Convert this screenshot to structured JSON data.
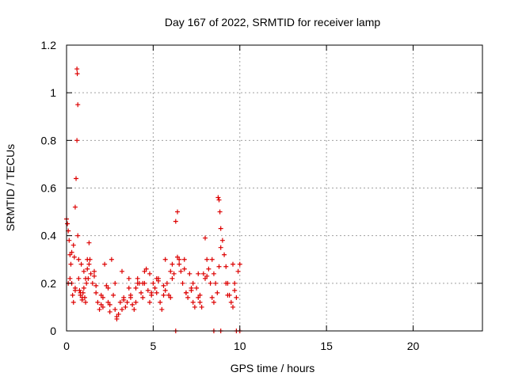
{
  "chart_data": {
    "type": "scatter",
    "title": "Day 167 of 2022, SRMTID for receiver lamp",
    "xlabel": "GPS time / hours",
    "ylabel": "SRMTID / TECUs",
    "xlim": [
      0,
      24
    ],
    "ylim": [
      0,
      1.2
    ],
    "x_ticks": [
      0,
      5,
      10,
      15,
      20
    ],
    "x_tick_labels": [
      "0",
      "5",
      "10",
      "15",
      "20"
    ],
    "y_ticks": [
      0,
      0.2,
      0.4,
      0.6,
      0.8,
      1.0,
      1.2
    ],
    "y_tick_labels": [
      "0",
      "0.2",
      "0.4",
      "0.6",
      "0.8",
      "1",
      "1.2"
    ],
    "grid": true,
    "marker": "+",
    "series": [
      {
        "name": "SRMTID",
        "color": "#dd0000",
        "x": [
          0.0,
          0.05,
          0.1,
          0.15,
          0.2,
          0.25,
          0.3,
          0.35,
          0.4,
          0.45,
          0.5,
          0.5,
          0.55,
          0.6,
          0.6,
          0.62,
          0.65,
          0.65,
          0.7,
          0.7,
          0.75,
          0.8,
          0.85,
          0.9,
          0.95,
          1.0,
          1.05,
          1.1,
          1.15,
          1.2,
          1.25,
          1.3,
          1.35,
          1.4,
          1.5,
          1.6,
          1.7,
          1.8,
          1.9,
          2.0,
          2.1,
          2.2,
          2.3,
          2.4,
          2.5,
          2.6,
          2.7,
          2.8,
          2.9,
          3.0,
          3.1,
          3.2,
          3.3,
          3.4,
          3.5,
          3.6,
          3.7,
          3.8,
          3.9,
          4.0,
          4.1,
          4.2,
          4.3,
          4.4,
          4.5,
          4.6,
          4.7,
          4.8,
          4.9,
          5.0,
          5.1,
          5.2,
          5.3,
          5.4,
          5.5,
          5.6,
          5.7,
          5.8,
          5.9,
          6.0,
          6.1,
          6.2,
          6.3,
          6.4,
          6.5,
          6.6,
          6.7,
          6.8,
          6.9,
          7.0,
          7.1,
          7.2,
          7.3,
          7.4,
          7.5,
          7.6,
          7.7,
          7.8,
          7.9,
          8.0,
          8.1,
          8.2,
          8.3,
          8.4,
          8.5,
          8.6,
          8.7,
          8.75,
          8.8,
          8.85,
          8.9,
          9.0,
          9.1,
          9.2,
          9.3,
          9.4,
          9.5,
          9.6,
          9.7,
          9.8,
          9.9,
          10.0,
          0.2,
          0.4,
          0.8,
          1.0,
          1.2,
          1.6,
          2.0,
          2.4,
          2.8,
          3.2,
          3.6,
          4.0,
          4.4,
          4.8,
          5.2,
          5.6,
          6.0,
          6.4,
          6.8,
          7.2,
          7.6,
          8.0,
          8.4,
          8.8,
          9.2,
          9.6,
          6.3,
          8.5,
          8.9,
          9.8,
          10.0,
          0.1,
          0.3,
          0.5,
          0.9,
          1.1,
          1.3,
          1.7,
          2.1,
          2.5,
          2.9,
          3.3,
          3.7,
          4.1,
          4.5,
          4.9,
          5.3,
          5.7,
          6.1,
          6.5,
          6.9,
          7.3,
          7.7,
          8.1,
          8.5,
          8.9,
          9.3,
          9.7
        ],
        "y": [
          0.47,
          0.45,
          0.42,
          0.38,
          0.32,
          0.28,
          0.2,
          0.15,
          0.36,
          0.31,
          0.52,
          0.18,
          0.64,
          0.8,
          1.1,
          1.08,
          0.95,
          0.4,
          0.22,
          0.3,
          0.17,
          0.15,
          0.28,
          0.14,
          0.16,
          0.18,
          0.14,
          0.12,
          0.2,
          0.26,
          0.22,
          0.37,
          0.3,
          0.24,
          0.2,
          0.25,
          0.16,
          0.12,
          0.09,
          0.11,
          0.14,
          0.28,
          0.19,
          0.12,
          0.08,
          0.3,
          0.15,
          0.09,
          0.05,
          0.07,
          0.12,
          0.09,
          0.14,
          0.1,
          0.12,
          0.18,
          0.14,
          0.11,
          0.09,
          0.18,
          0.22,
          0.2,
          0.16,
          0.14,
          0.2,
          0.26,
          0.17,
          0.12,
          0.15,
          0.2,
          0.18,
          0.16,
          0.22,
          0.12,
          0.09,
          0.19,
          0.3,
          0.2,
          0.15,
          0.14,
          0.28,
          0.24,
          0.46,
          0.5,
          0.3,
          0.25,
          0.2,
          0.3,
          0.16,
          0.14,
          0.24,
          0.17,
          0.12,
          0.1,
          0.18,
          0.14,
          0.12,
          0.1,
          0.24,
          0.39,
          0.3,
          0.26,
          0.2,
          0.14,
          0.24,
          0.2,
          0.16,
          0.56,
          0.55,
          0.5,
          0.43,
          0.38,
          0.32,
          0.27,
          0.2,
          0.15,
          0.12,
          0.1,
          0.17,
          0.14,
          0.25,
          0.28,
          0.22,
          0.12,
          0.16,
          0.25,
          0.3,
          0.23,
          0.15,
          0.18,
          0.2,
          0.25,
          0.22,
          0.12,
          0.2,
          0.24,
          0.22,
          0.15,
          0.25,
          0.31,
          0.26,
          0.18,
          0.24,
          0.22,
          0.3,
          0.27,
          0.2,
          0.28,
          0.0,
          0.0,
          0.0,
          0.0,
          0.0,
          0.2,
          0.33,
          0.17,
          0.13,
          0.22,
          0.28,
          0.19,
          0.1,
          0.11,
          0.06,
          0.13,
          0.15,
          0.2,
          0.25,
          0.16,
          0.21,
          0.17,
          0.22,
          0.28,
          0.16,
          0.2,
          0.15,
          0.23,
          0.12,
          0.35,
          0.15,
          0.2
        ]
      }
    ]
  }
}
